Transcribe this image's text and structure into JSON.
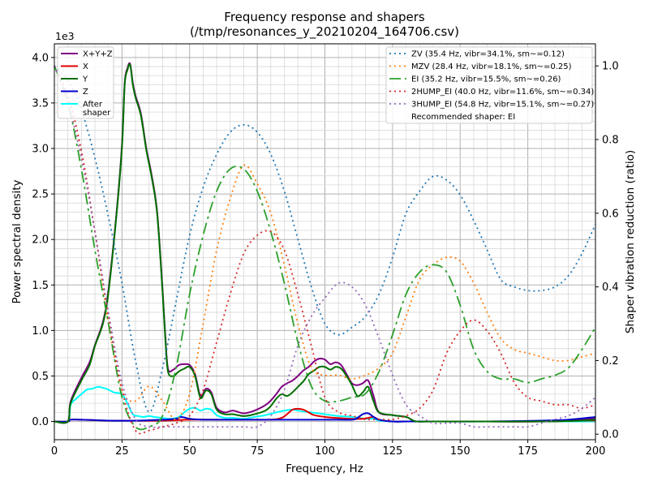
{
  "chart_data": {
    "type": "line",
    "title": "Frequency response and shapers",
    "subtitle": "(/tmp/resonances_y_20210204_164706.csv)",
    "xlabel": "Frequency, Hz",
    "ylabel": "Power spectral density",
    "y2label": "Shaper vibration reduction (ratio)",
    "y_multiplier": "1e3",
    "xlim": [
      0,
      200
    ],
    "ylim": [
      -0.2,
      4.15
    ],
    "y2lim": [
      -0.015,
      1.06
    ],
    "xticks": [
      "0",
      "25",
      "50",
      "75",
      "100",
      "125",
      "150",
      "175",
      "200"
    ],
    "yticks": [
      "0.0",
      "0.5",
      "1.0",
      "1.5",
      "2.0",
      "2.5",
      "3.0",
      "3.5",
      "4.0"
    ],
    "y2ticks": [
      "0.0",
      "0.2",
      "0.4",
      "0.6",
      "0.8",
      "1.0"
    ],
    "grid": true,
    "legend_left_position": "top-left",
    "legend_right_position": "top-right",
    "recommended_text": "Recommended shaper: EI",
    "psd_series": [
      {
        "name": "X+Y+Z",
        "color": "#800080",
        "width": 2,
        "x": [
          0,
          5,
          6,
          10,
          13,
          15,
          18,
          20,
          23,
          25,
          26,
          27,
          28,
          29,
          30,
          32,
          34,
          36,
          38,
          40,
          41,
          42,
          44,
          46,
          48,
          50,
          52,
          54,
          56,
          58,
          60,
          63,
          66,
          70,
          74,
          78,
          80,
          82,
          84,
          86,
          88,
          90,
          92,
          94,
          96,
          98,
          100,
          102,
          104,
          106,
          108,
          110,
          112,
          114,
          116,
          118,
          120,
          125,
          130,
          132,
          134,
          140,
          160,
          180,
          195,
          200
        ],
        "y": [
          0,
          0,
          0.22,
          0.48,
          0.65,
          0.84,
          1.1,
          1.45,
          2.3,
          3.05,
          3.72,
          3.88,
          3.93,
          3.72,
          3.58,
          3.38,
          3.0,
          2.7,
          2.3,
          1.45,
          0.95,
          0.58,
          0.57,
          0.62,
          0.63,
          0.62,
          0.52,
          0.28,
          0.36,
          0.32,
          0.15,
          0.1,
          0.12,
          0.09,
          0.12,
          0.18,
          0.23,
          0.3,
          0.38,
          0.42,
          0.45,
          0.5,
          0.56,
          0.6,
          0.66,
          0.69,
          0.68,
          0.63,
          0.65,
          0.62,
          0.52,
          0.42,
          0.4,
          0.42,
          0.45,
          0.28,
          0.1,
          0.07,
          0.05,
          0.02,
          0.0,
          0.0,
          0.0,
          0.0,
          0.02,
          0.04
        ]
      },
      {
        "name": "X",
        "color": "#e00000",
        "width": 2,
        "x": [
          0,
          5,
          6,
          10,
          20,
          40,
          50,
          60,
          70,
          80,
          84,
          86,
          88,
          90,
          92,
          94,
          96,
          100,
          104,
          110,
          114,
          116,
          118,
          120,
          125,
          130,
          140,
          160,
          180,
          195,
          200
        ],
        "y": [
          0,
          0,
          0.02,
          0.02,
          0.01,
          0.01,
          0.02,
          0.02,
          0.02,
          0.02,
          0.04,
          0.08,
          0.13,
          0.14,
          0.13,
          0.1,
          0.07,
          0.05,
          0.04,
          0.03,
          0.03,
          0.04,
          0.05,
          0.02,
          0.0,
          0.0,
          0.0,
          0.0,
          0.0,
          0.01,
          0.01
        ]
      },
      {
        "name": "Y",
        "color": "#007000",
        "width": 2,
        "x": [
          0,
          5,
          6,
          10,
          13,
          15,
          18,
          20,
          23,
          25,
          26,
          27,
          28,
          29,
          30,
          32,
          34,
          36,
          38,
          40,
          41,
          42,
          44,
          46,
          48,
          50,
          52,
          54,
          56,
          58,
          60,
          63,
          66,
          70,
          74,
          78,
          80,
          82,
          84,
          86,
          88,
          90,
          92,
          94,
          96,
          98,
          100,
          102,
          104,
          106,
          108,
          110,
          112,
          114,
          116,
          118,
          120,
          125,
          130,
          132,
          134,
          140,
          160,
          180,
          195,
          200
        ],
        "y": [
          0,
          0,
          0.2,
          0.45,
          0.62,
          0.83,
          1.08,
          1.42,
          2.28,
          3.02,
          3.7,
          3.86,
          3.92,
          3.7,
          3.56,
          3.36,
          2.98,
          2.68,
          2.28,
          1.42,
          0.92,
          0.55,
          0.5,
          0.55,
          0.58,
          0.6,
          0.5,
          0.26,
          0.34,
          0.3,
          0.13,
          0.08,
          0.08,
          0.06,
          0.08,
          0.12,
          0.17,
          0.25,
          0.3,
          0.28,
          0.32,
          0.38,
          0.44,
          0.52,
          0.56,
          0.6,
          0.6,
          0.57,
          0.6,
          0.58,
          0.5,
          0.4,
          0.28,
          0.32,
          0.38,
          0.22,
          0.1,
          0.07,
          0.05,
          0.02,
          0.0,
          0.0,
          0.0,
          0.0,
          0.01,
          0.02
        ]
      },
      {
        "name": "Z",
        "color": "#0000d0",
        "width": 2,
        "x": [
          0,
          5,
          6,
          10,
          20,
          30,
          40,
          45,
          47,
          50,
          55,
          60,
          80,
          100,
          110,
          112,
          114,
          116,
          118,
          120,
          125,
          130,
          140,
          160,
          180,
          190,
          200
        ],
        "y": [
          0,
          0,
          0.02,
          0.02,
          0.01,
          0.01,
          0.02,
          0.03,
          0.05,
          0.03,
          0.02,
          0.02,
          0.02,
          0.02,
          0.02,
          0.04,
          0.08,
          0.09,
          0.05,
          0.02,
          0.0,
          0.0,
          0.0,
          0.0,
          0.01,
          0.02,
          0.05
        ]
      },
      {
        "name": "After\nshaper",
        "color": "#00ffff",
        "width": 2,
        "x": [
          0,
          5,
          6,
          8,
          10,
          12,
          14,
          16,
          18,
          20,
          22,
          25,
          27,
          29,
          31,
          33,
          35,
          37,
          40,
          43,
          46,
          48,
          50,
          52,
          54,
          56,
          58,
          60,
          63,
          66,
          70,
          74,
          78,
          82,
          85,
          88,
          90,
          92,
          95,
          100,
          105,
          110,
          115,
          118,
          120,
          125,
          130,
          140,
          200
        ],
        "y": [
          0,
          0,
          0.18,
          0.25,
          0.3,
          0.35,
          0.36,
          0.38,
          0.37,
          0.35,
          0.32,
          0.3,
          0.2,
          0.08,
          0.06,
          0.05,
          0.06,
          0.05,
          0.04,
          0.03,
          0.05,
          0.1,
          0.14,
          0.15,
          0.12,
          0.14,
          0.13,
          0.07,
          0.04,
          0.04,
          0.03,
          0.05,
          0.07,
          0.1,
          0.12,
          0.13,
          0.12,
          0.11,
          0.1,
          0.08,
          0.06,
          0.05,
          0.03,
          0.03,
          0.01,
          0.0,
          0.0,
          0.0,
          0.0
        ]
      }
    ],
    "shaper_series": [
      {
        "name": "ZV (35.4 Hz, vibr=34.1%, sm~=0.12)",
        "color": "#1f77b4",
        "dash": "2,4",
        "x": [
          0,
          5,
          10,
          15,
          20,
          25,
          30,
          35,
          40,
          45,
          50,
          55,
          60,
          65,
          70,
          75,
          80,
          85,
          90,
          95,
          100,
          105,
          110,
          115,
          120,
          125,
          130,
          135,
          140,
          145,
          150,
          155,
          160,
          165,
          170,
          175,
          180,
          185,
          190,
          195,
          200
        ],
        "y": [
          1.0,
          0.96,
          0.88,
          0.75,
          0.59,
          0.41,
          0.2,
          0.06,
          0.18,
          0.36,
          0.54,
          0.67,
          0.76,
          0.82,
          0.84,
          0.82,
          0.76,
          0.66,
          0.53,
          0.4,
          0.3,
          0.27,
          0.29,
          0.32,
          0.38,
          0.48,
          0.6,
          0.66,
          0.7,
          0.69,
          0.65,
          0.58,
          0.5,
          0.42,
          0.4,
          0.39,
          0.39,
          0.4,
          0.43,
          0.49,
          0.57
        ]
      },
      {
        "name": "MZV (28.4 Hz, vibr=18.1%, sm~=0.25)",
        "color": "#ff7f0e",
        "dash": "2,4",
        "x": [
          0,
          5,
          10,
          15,
          20,
          25,
          30,
          35,
          40,
          45,
          50,
          55,
          60,
          65,
          70,
          75,
          80,
          85,
          90,
          95,
          100,
          105,
          110,
          115,
          120,
          125,
          130,
          135,
          140,
          145,
          150,
          155,
          160,
          165,
          170,
          175,
          180,
          185,
          190,
          195,
          200
        ],
        "y": [
          1.0,
          0.9,
          0.75,
          0.55,
          0.3,
          0.12,
          0.09,
          0.13,
          0.09,
          0.04,
          0.11,
          0.3,
          0.5,
          0.64,
          0.73,
          0.68,
          0.6,
          0.46,
          0.3,
          0.18,
          0.16,
          0.16,
          0.15,
          0.16,
          0.18,
          0.22,
          0.32,
          0.42,
          0.46,
          0.48,
          0.47,
          0.41,
          0.33,
          0.26,
          0.23,
          0.22,
          0.21,
          0.2,
          0.2,
          0.21,
          0.22
        ]
      },
      {
        "name": "EI (35.2 Hz, vibr=15.5%, sm~=0.26)",
        "color": "#2ca02c",
        "dash": "14,5,3,5",
        "x": [
          0,
          5,
          10,
          15,
          20,
          25,
          30,
          35,
          40,
          45,
          50,
          55,
          60,
          65,
          70,
          75,
          80,
          85,
          90,
          95,
          100,
          105,
          110,
          115,
          120,
          125,
          130,
          135,
          140,
          145,
          150,
          155,
          160,
          165,
          170,
          175,
          180,
          185,
          190,
          195,
          200
        ],
        "y": [
          1.0,
          0.9,
          0.72,
          0.5,
          0.3,
          0.1,
          0.02,
          0.02,
          0.05,
          0.18,
          0.38,
          0.54,
          0.66,
          0.72,
          0.72,
          0.66,
          0.55,
          0.41,
          0.25,
          0.13,
          0.09,
          0.09,
          0.1,
          0.11,
          0.17,
          0.27,
          0.38,
          0.44,
          0.46,
          0.44,
          0.35,
          0.23,
          0.17,
          0.15,
          0.15,
          0.14,
          0.15,
          0.16,
          0.18,
          0.23,
          0.29
        ]
      },
      {
        "name": "2HUMP_EI (40.0 Hz, vibr=11.6%, sm~=0.34)",
        "color": "#d62728",
        "dash": "2,4",
        "x": [
          0,
          5,
          10,
          15,
          20,
          25,
          30,
          35,
          40,
          45,
          50,
          55,
          60,
          65,
          70,
          75,
          80,
          85,
          90,
          95,
          100,
          105,
          110,
          115,
          120,
          125,
          130,
          135,
          140,
          145,
          150,
          155,
          160,
          165,
          170,
          175,
          180,
          185,
          190,
          195,
          200
        ],
        "y": [
          1.0,
          0.92,
          0.77,
          0.55,
          0.32,
          0.12,
          0.01,
          0.01,
          0.02,
          0.03,
          0.05,
          0.12,
          0.25,
          0.38,
          0.49,
          0.54,
          0.55,
          0.5,
          0.38,
          0.24,
          0.1,
          0.06,
          0.05,
          0.04,
          0.04,
          0.04,
          0.05,
          0.07,
          0.12,
          0.22,
          0.28,
          0.31,
          0.28,
          0.22,
          0.14,
          0.1,
          0.09,
          0.08,
          0.08,
          0.07,
          0.08
        ]
      },
      {
        "name": "3HUMP_EI (54.8 Hz, vibr=15.1%, sm~=0.27)",
        "color": "#9467bd",
        "dash": "2,4",
        "x": [
          0,
          5,
          10,
          15,
          20,
          25,
          30,
          35,
          40,
          45,
          50,
          55,
          60,
          65,
          70,
          75,
          80,
          85,
          90,
          95,
          100,
          105,
          110,
          115,
          120,
          125,
          130,
          135,
          140,
          145,
          150,
          155,
          160,
          165,
          170,
          175,
          180,
          185,
          190,
          195,
          200
        ],
        "y": [
          1.0,
          0.9,
          0.75,
          0.55,
          0.33,
          0.14,
          0.04,
          0.02,
          0.02,
          0.02,
          0.02,
          0.02,
          0.02,
          0.02,
          0.02,
          0.02,
          0.05,
          0.12,
          0.24,
          0.32,
          0.37,
          0.41,
          0.4,
          0.35,
          0.26,
          0.16,
          0.08,
          0.05,
          0.03,
          0.03,
          0.03,
          0.02,
          0.02,
          0.02,
          0.02,
          0.02,
          0.03,
          0.04,
          0.05,
          0.07,
          0.1
        ]
      }
    ]
  }
}
